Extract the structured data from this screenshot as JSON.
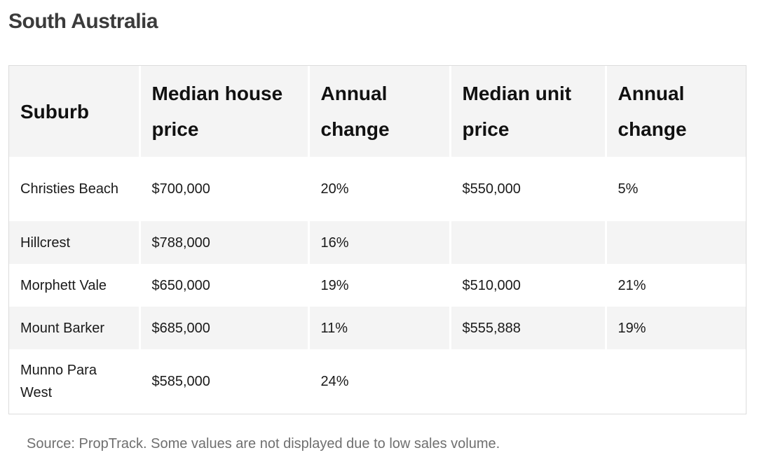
{
  "page": {
    "title": "South Australia"
  },
  "table": {
    "headers": [
      "Suburb",
      "Median house price",
      "Annual change",
      "Median unit price",
      "Annual change"
    ],
    "rows": [
      [
        "Christies Beach",
        "$700,000",
        "20%",
        "$550,000",
        "5%"
      ],
      [
        "Hillcrest",
        "$788,000",
        "16%",
        "",
        ""
      ],
      [
        "Morphett Vale",
        "$650,000",
        "19%",
        "$510,000",
        "21%"
      ],
      [
        "Mount Barker",
        "$685,000",
        "11%",
        "$555,888",
        "19%"
      ],
      [
        "Munno Para West",
        "$585,000",
        "24%",
        "",
        ""
      ]
    ]
  },
  "footer": {
    "source": "Source: PropTrack. Some values are not displayed due to low sales volume."
  }
}
